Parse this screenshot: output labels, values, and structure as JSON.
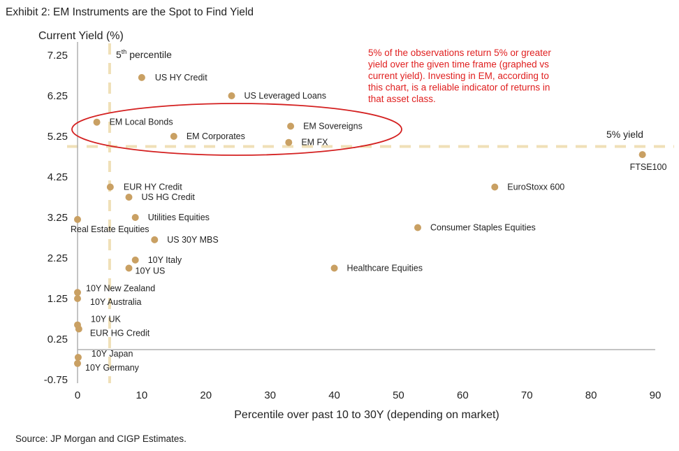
{
  "chart_data": {
    "type": "scatter",
    "title": "Exhibit 2: EM Instruments are the Spot to Find Yield",
    "ylabel": "Current Yield (%)",
    "xlabel": "Percentile over past 10 to 30Y (depending on market)",
    "source": "Source: JP Morgan and CIGP Estimates.",
    "xlim": [
      0,
      90
    ],
    "ylim": [
      -0.75,
      7.25
    ],
    "xticks": [
      0,
      10,
      20,
      30,
      40,
      50,
      60,
      70,
      80,
      90
    ],
    "yticks": [
      7.25,
      6.25,
      5.25,
      4.25,
      3.25,
      2.25,
      1.25,
      0.25,
      -0.75
    ],
    "grid": false,
    "point_color": "#c9a063",
    "reference_line_color": "#f0e0b8",
    "annotation_color": "#e02020",
    "vline": {
      "x": 5,
      "label": "5th percentile",
      "label_main": "5",
      "label_sup": "th",
      "label_rest": " percentile"
    },
    "hline": {
      "y": 5,
      "label": "5% yield"
    },
    "annotation": {
      "lines": [
        "5% of the observations return 5% or greater",
        "yield over the given time frame (graphed vs",
        "current yield). Investing in EM, according to",
        "this chart, is a reliable indicator of returns in",
        "that asset class."
      ]
    },
    "points": [
      {
        "label": "US HY Credit",
        "x": 10,
        "y": 6.7
      },
      {
        "label": "US Leveraged Loans",
        "x": 24,
        "y": 6.25
      },
      {
        "label": "EM Local Bonds",
        "x": 3,
        "y": 5.6
      },
      {
        "label": "EM Corporates",
        "x": 15,
        "y": 5.25
      },
      {
        "label": "EM Sovereigns",
        "x": 33.2,
        "y": 5.5
      },
      {
        "label": "EM FX",
        "x": 32.9,
        "y": 5.1
      },
      {
        "label": "FTSE100",
        "x": 88,
        "y": 4.8
      },
      {
        "label": "EUR HY Credit",
        "x": 5.1,
        "y": 4.0
      },
      {
        "label": "US HG Credit",
        "x": 8,
        "y": 3.75
      },
      {
        "label": "EuroStoxx 600",
        "x": 65,
        "y": 4.0
      },
      {
        "label": "Utilities Equities",
        "x": 9,
        "y": 3.25
      },
      {
        "label": "Real Estate Equities",
        "x": 0,
        "y": 3.2
      },
      {
        "label": "Consumer Staples Equities",
        "x": 53,
        "y": 3.0
      },
      {
        "label": "US 30Y MBS",
        "x": 12,
        "y": 2.7
      },
      {
        "label": "10Y Italy",
        "x": 9,
        "y": 2.2
      },
      {
        "label": "10Y US",
        "x": 8,
        "y": 2.0
      },
      {
        "label": "Healthcare Equities",
        "x": 40,
        "y": 2.0
      },
      {
        "label": "10Y New Zealand",
        "x": 0,
        "y": 1.4
      },
      {
        "label": "10Y Australia",
        "x": 0,
        "y": 1.25
      },
      {
        "label": "10Y UK",
        "x": 0,
        "y": 0.6
      },
      {
        "label": "EUR HG Credit",
        "x": 0.2,
        "y": 0.5
      },
      {
        "label": "10Y Japan",
        "x": 0.1,
        "y": -0.2
      },
      {
        "label": "10Y Germany",
        "x": 0,
        "y": -0.35
      }
    ],
    "highlight": {
      "type": "ellipse",
      "color": "#d42020",
      "members": [
        "EM Local Bonds",
        "EM Corporates",
        "EM Sovereigns",
        "EM FX"
      ]
    }
  }
}
